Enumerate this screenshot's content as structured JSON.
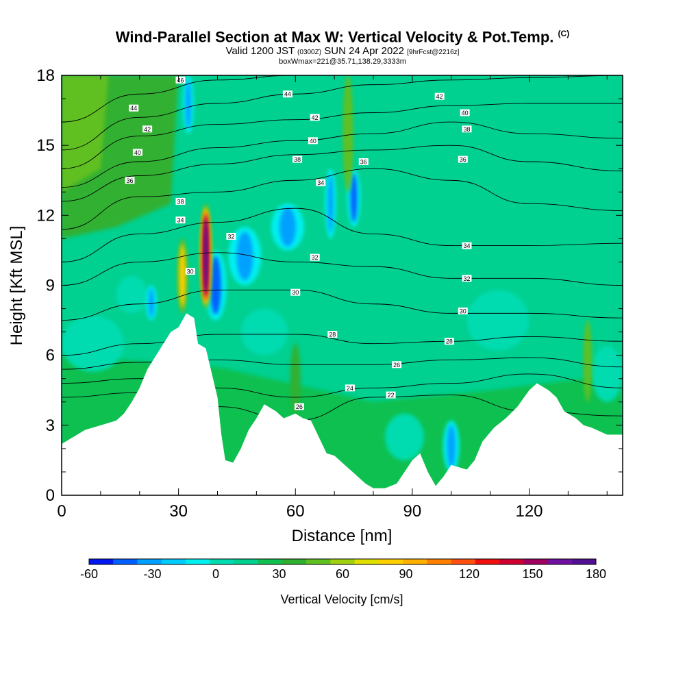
{
  "title": {
    "main": "Wind-Parallel Section at Max W: Vertical Velocity & Pot.Temp.",
    "copyright": "(C)",
    "valid_prefix": "Valid 1200 JST",
    "valid_utc": "(0300Z)",
    "valid_date": "SUN 24 Apr 2022",
    "forecast_info": "[9hrFcst@2216z]",
    "box_info": "boxWmax=221@35.71,138.29,3333m"
  },
  "chart_data": {
    "type": "heatmap",
    "xlabel": "Distance [nm]",
    "ylabel": "Height [Kft MSL]",
    "xlim": [
      0,
      144
    ],
    "ylim": [
      0,
      18
    ],
    "x_ticks": [
      0,
      30,
      60,
      90,
      120
    ],
    "y_ticks": [
      0,
      3,
      6,
      9,
      12,
      15,
      18
    ],
    "grid": false,
    "colorbar": {
      "label": "Vertical Velocity [cm/s]",
      "range": [
        -60,
        180
      ],
      "step": 10,
      "tick_values": [
        -60,
        -30,
        0,
        30,
        60,
        90,
        120,
        150,
        180
      ],
      "colors": [
        "#0018f0",
        "#0060ff",
        "#00a0ff",
        "#00ccff",
        "#00f0f0",
        "#00dcb0",
        "#00d090",
        "#10c050",
        "#30b030",
        "#60c020",
        "#a0d010",
        "#e0e000",
        "#ffd000",
        "#ffb000",
        "#ff8000",
        "#ff5010",
        "#f01010",
        "#d00030",
        "#a00060",
        "#7010a0",
        "#501090"
      ]
    },
    "terrain_height": [
      {
        "x": 0,
        "y": 2.2
      },
      {
        "x": 3,
        "y": 2.5
      },
      {
        "x": 6,
        "y": 2.8
      },
      {
        "x": 10,
        "y": 3.0
      },
      {
        "x": 14,
        "y": 3.2
      },
      {
        "x": 16,
        "y": 3.5
      },
      {
        "x": 18,
        "y": 4.0
      },
      {
        "x": 20,
        "y": 4.6
      },
      {
        "x": 22,
        "y": 5.4
      },
      {
        "x": 25,
        "y": 6.2
      },
      {
        "x": 28,
        "y": 7.0
      },
      {
        "x": 30,
        "y": 7.2
      },
      {
        "x": 32,
        "y": 7.8
      },
      {
        "x": 34,
        "y": 7.6
      },
      {
        "x": 35,
        "y": 6.5
      },
      {
        "x": 37,
        "y": 6.3
      },
      {
        "x": 38,
        "y": 5.6
      },
      {
        "x": 40,
        "y": 4.2
      },
      {
        "x": 41,
        "y": 2.6
      },
      {
        "x": 42,
        "y": 1.5
      },
      {
        "x": 44,
        "y": 1.4
      },
      {
        "x": 46,
        "y": 2.0
      },
      {
        "x": 48,
        "y": 2.8
      },
      {
        "x": 50,
        "y": 3.3
      },
      {
        "x": 52,
        "y": 3.9
      },
      {
        "x": 55,
        "y": 3.6
      },
      {
        "x": 57,
        "y": 3.3
      },
      {
        "x": 60,
        "y": 3.5
      },
      {
        "x": 62,
        "y": 3.3
      },
      {
        "x": 64,
        "y": 3.2
      },
      {
        "x": 66,
        "y": 2.5
      },
      {
        "x": 68,
        "y": 1.8
      },
      {
        "x": 70,
        "y": 1.7
      },
      {
        "x": 72,
        "y": 1.4
      },
      {
        "x": 74,
        "y": 1.1
      },
      {
        "x": 76,
        "y": 0.8
      },
      {
        "x": 78,
        "y": 0.5
      },
      {
        "x": 80,
        "y": 0.3
      },
      {
        "x": 83,
        "y": 0.3
      },
      {
        "x": 86,
        "y": 0.5
      },
      {
        "x": 88,
        "y": 1.0
      },
      {
        "x": 90,
        "y": 1.5
      },
      {
        "x": 92,
        "y": 1.8
      },
      {
        "x": 94,
        "y": 1.0
      },
      {
        "x": 96,
        "y": 0.4
      },
      {
        "x": 98,
        "y": 0.8
      },
      {
        "x": 100,
        "y": 1.3
      },
      {
        "x": 102,
        "y": 1.2
      },
      {
        "x": 104,
        "y": 1.1
      },
      {
        "x": 106,
        "y": 1.5
      },
      {
        "x": 108,
        "y": 2.3
      },
      {
        "x": 111,
        "y": 2.9
      },
      {
        "x": 114,
        "y": 3.3
      },
      {
        "x": 117,
        "y": 3.8
      },
      {
        "x": 120,
        "y": 4.5
      },
      {
        "x": 122,
        "y": 4.8
      },
      {
        "x": 125,
        "y": 4.5
      },
      {
        "x": 127,
        "y": 4.2
      },
      {
        "x": 129,
        "y": 3.6
      },
      {
        "x": 132,
        "y": 3.3
      },
      {
        "x": 134,
        "y": 3.0
      },
      {
        "x": 136,
        "y": 2.9
      },
      {
        "x": 140,
        "y": 2.6
      },
      {
        "x": 144,
        "y": 2.6
      }
    ],
    "updraft_cores": [
      {
        "x": 37,
        "y_bottom": 8.0,
        "y_top": 12.5,
        "width": 1.4,
        "value": 150
      },
      {
        "x": 31,
        "y_bottom": 7.8,
        "y_top": 11.0,
        "width": 1.2,
        "value": 60
      },
      {
        "x": 73.5,
        "y_bottom": 13.0,
        "y_top": 18.0,
        "width": 1.2,
        "value": 50
      },
      {
        "x": 135,
        "y_bottom": 4.0,
        "y_top": 7.5,
        "width": 1.0,
        "value": 40
      },
      {
        "x": 60,
        "y_bottom": 3.5,
        "y_top": 6.5,
        "width": 1.2,
        "value": 25
      }
    ],
    "downdraft_cores": [
      {
        "x": 39.5,
        "y_bottom": 7.5,
        "y_top": 10.5,
        "width": 2.0,
        "value": -50
      },
      {
        "x": 47,
        "y_bottom": 9.0,
        "y_top": 11.5,
        "width": 3.0,
        "value": -35
      },
      {
        "x": 58,
        "y_bottom": 10.5,
        "y_top": 12.5,
        "width": 3.0,
        "value": -40
      },
      {
        "x": 75,
        "y_bottom": 11.5,
        "y_top": 14.0,
        "width": 1.2,
        "value": -45
      },
      {
        "x": 69,
        "y_bottom": 11.0,
        "y_top": 14.0,
        "width": 1.0,
        "value": -35
      },
      {
        "x": 100,
        "y_bottom": 1.0,
        "y_top": 3.2,
        "width": 1.5,
        "value": -40
      },
      {
        "x": 32.5,
        "y_bottom": 15.5,
        "y_top": 18.0,
        "width": 1.0,
        "value": -40
      },
      {
        "x": 23,
        "y_bottom": 7.5,
        "y_top": 9.0,
        "width": 1.0,
        "value": -35
      }
    ],
    "theta_contours": [
      {
        "level": 22,
        "heights": [
          [
            0,
            4.2
          ],
          [
            20,
            4.4
          ],
          [
            40,
            3.8
          ],
          [
            60,
            3.2
          ],
          [
            80,
            4.2
          ],
          [
            100,
            4.3
          ],
          [
            120,
            3.6
          ],
          [
            144,
            3.4
          ]
        ]
      },
      {
        "level": 24,
        "heights": [
          [
            0,
            4.8
          ],
          [
            20,
            5.0
          ],
          [
            40,
            4.6
          ],
          [
            60,
            4.2
          ],
          [
            80,
            4.6
          ],
          [
            100,
            4.8
          ],
          [
            120,
            5.2
          ],
          [
            144,
            4.6
          ]
        ]
      },
      {
        "level": 26,
        "heights": [
          [
            0,
            5.4
          ],
          [
            20,
            5.7
          ],
          [
            40,
            5.8
          ],
          [
            60,
            5.6
          ],
          [
            80,
            5.6
          ],
          [
            100,
            5.8
          ],
          [
            120,
            5.9
          ],
          [
            144,
            5.5
          ]
        ]
      },
      {
        "level": 28,
        "heights": [
          [
            0,
            6.0
          ],
          [
            20,
            6.5
          ],
          [
            40,
            6.9
          ],
          [
            60,
            6.9
          ],
          [
            80,
            6.5
          ],
          [
            100,
            6.6
          ],
          [
            120,
            6.8
          ],
          [
            144,
            6.6
          ]
        ]
      },
      {
        "level": 30,
        "heights": [
          [
            0,
            7.5
          ],
          [
            20,
            8.2
          ],
          [
            40,
            8.8
          ],
          [
            60,
            8.8
          ],
          [
            80,
            8.2
          ],
          [
            100,
            7.8
          ],
          [
            120,
            7.8
          ],
          [
            144,
            7.6
          ]
        ]
      },
      {
        "level": 32,
        "heights": [
          [
            0,
            9.0
          ],
          [
            20,
            10.0
          ],
          [
            40,
            10.4
          ],
          [
            60,
            10.0
          ],
          [
            80,
            9.8
          ],
          [
            100,
            9.3
          ],
          [
            120,
            9.3
          ],
          [
            144,
            9.0
          ]
        ]
      },
      {
        "level": 34,
        "heights": [
          [
            0,
            10.0
          ],
          [
            20,
            11.2
          ],
          [
            40,
            11.7
          ],
          [
            60,
            12.3
          ],
          [
            80,
            11.2
          ],
          [
            100,
            10.7
          ],
          [
            120,
            10.7
          ],
          [
            144,
            10.8
          ]
        ]
      },
      {
        "level": 36,
        "heights": [
          [
            0,
            11.4
          ],
          [
            20,
            12.8
          ],
          [
            40,
            13.0
          ],
          [
            60,
            13.5
          ],
          [
            80,
            14.0
          ],
          [
            100,
            13.5
          ],
          [
            120,
            12.5
          ],
          [
            144,
            12.2
          ]
        ]
      },
      {
        "level": 38,
        "heights": [
          [
            0,
            12.6
          ],
          [
            20,
            13.7
          ],
          [
            40,
            14.2
          ],
          [
            60,
            14.6
          ],
          [
            80,
            14.8
          ],
          [
            100,
            15.0
          ],
          [
            120,
            14.3
          ],
          [
            144,
            13.9
          ]
        ]
      },
      {
        "level": 40,
        "heights": [
          [
            0,
            13.2
          ],
          [
            20,
            14.3
          ],
          [
            40,
            14.9
          ],
          [
            60,
            15.2
          ],
          [
            80,
            15.5
          ],
          [
            100,
            16.0
          ],
          [
            120,
            15.5
          ],
          [
            144,
            15.3
          ]
        ]
      },
      {
        "level": 42,
        "heights": [
          [
            0,
            14.0
          ],
          [
            20,
            15.4
          ],
          [
            40,
            15.9
          ],
          [
            60,
            16.1
          ],
          [
            80,
            16.4
          ],
          [
            100,
            16.7
          ],
          [
            120,
            16.8
          ],
          [
            144,
            16.8
          ]
        ]
      },
      {
        "level": 44,
        "heights": [
          [
            0,
            14.8
          ],
          [
            20,
            16.2
          ],
          [
            40,
            16.8
          ],
          [
            60,
            17.2
          ],
          [
            80,
            17.6
          ],
          [
            100,
            17.8
          ],
          [
            120,
            17.9
          ],
          [
            144,
            18.0
          ]
        ]
      },
      {
        "level": 46,
        "heights": [
          [
            0,
            16.0
          ],
          [
            20,
            17.2
          ],
          [
            40,
            17.8
          ],
          [
            60,
            18.0
          ],
          [
            80,
            18.0
          ],
          [
            100,
            18.0
          ],
          [
            120,
            18.0
          ],
          [
            144,
            18.0
          ]
        ]
      }
    ],
    "contour_labels": [
      {
        "text": "46",
        "x": 30.5,
        "y": 17.8
      },
      {
        "text": "44",
        "x": 18.5,
        "y": 16.6
      },
      {
        "text": "42",
        "x": 22,
        "y": 15.7
      },
      {
        "text": "40",
        "x": 19.5,
        "y": 14.7
      },
      {
        "text": "36",
        "x": 17.5,
        "y": 13.5
      },
      {
        "text": "38",
        "x": 30.5,
        "y": 12.6
      },
      {
        "text": "34",
        "x": 30.5,
        "y": 11.8
      },
      {
        "text": "32",
        "x": 43.5,
        "y": 11.1
      },
      {
        "text": "30",
        "x": 33,
        "y": 9.6
      },
      {
        "text": "44",
        "x": 58,
        "y": 17.2
      },
      {
        "text": "42",
        "x": 65,
        "y": 16.2
      },
      {
        "text": "40",
        "x": 64.5,
        "y": 15.2
      },
      {
        "text": "38",
        "x": 60.5,
        "y": 14.4
      },
      {
        "text": "34",
        "x": 66.5,
        "y": 13.4
      },
      {
        "text": "36",
        "x": 77.5,
        "y": 14.3
      },
      {
        "text": "42",
        "x": 97,
        "y": 17.1
      },
      {
        "text": "40",
        "x": 103.5,
        "y": 16.4
      },
      {
        "text": "38",
        "x": 104,
        "y": 15.7
      },
      {
        "text": "36",
        "x": 103,
        "y": 14.4
      },
      {
        "text": "34",
        "x": 104,
        "y": 10.7
      },
      {
        "text": "32",
        "x": 104,
        "y": 9.3
      },
      {
        "text": "30",
        "x": 103,
        "y": 7.9
      },
      {
        "text": "32",
        "x": 65,
        "y": 10.2
      },
      {
        "text": "30",
        "x": 60,
        "y": 8.7
      },
      {
        "text": "28",
        "x": 69.5,
        "y": 6.9
      },
      {
        "text": "28",
        "x": 99.5,
        "y": 6.6
      },
      {
        "text": "26",
        "x": 86,
        "y": 5.6
      },
      {
        "text": "24",
        "x": 74,
        "y": 4.6
      },
      {
        "text": "22",
        "x": 84.5,
        "y": 4.3
      },
      {
        "text": "26",
        "x": 61,
        "y": 3.8
      }
    ]
  }
}
